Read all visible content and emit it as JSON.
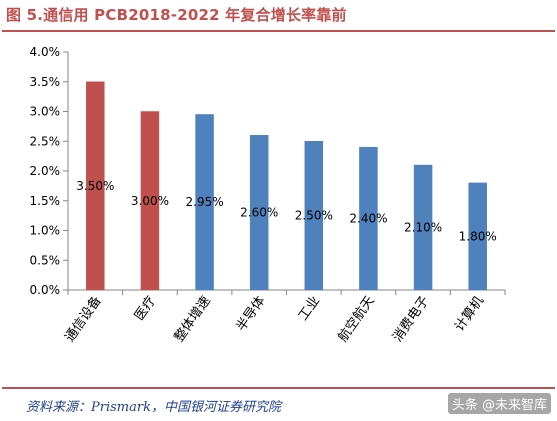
{
  "header": {
    "title": "图 5.通信用 PCB2018-2022 年复合增长率靠前"
  },
  "footer": {
    "source": "资料来源：Prismark，中国银河证券研究院",
    "watermark": "头条 @未来智库"
  },
  "colors": {
    "red": "#c0504d",
    "blue": "#4f81bd",
    "accent": "#c0504d",
    "source_text": "#1f3f8f"
  },
  "chart_data": {
    "type": "bar",
    "categories": [
      "通信设备",
      "医疗",
      "整体增速",
      "半导体",
      "工业",
      "航空航天",
      "消费电子",
      "计算机"
    ],
    "values": [
      3.5,
      3.0,
      2.95,
      2.6,
      2.5,
      2.4,
      2.1,
      1.8
    ],
    "data_labels": [
      "3.50%",
      "3.00%",
      "2.95%",
      "2.60%",
      "2.50%",
      "2.40%",
      "2.10%",
      "1.80%"
    ],
    "bar_colors": [
      "red",
      "red",
      "blue",
      "blue",
      "blue",
      "blue",
      "blue",
      "blue"
    ],
    "yticks": [
      "0.0%",
      "0.5%",
      "1.0%",
      "1.5%",
      "2.0%",
      "2.5%",
      "3.0%",
      "3.5%",
      "4.0%"
    ],
    "ylim": [
      0,
      4.0
    ],
    "grid": false,
    "legend": "none"
  }
}
